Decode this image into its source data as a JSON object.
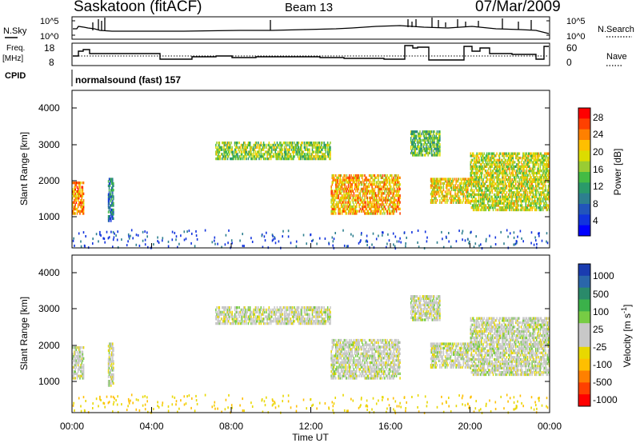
{
  "header": {
    "station": "Saskatoon (fitACF)",
    "beam": "Beam 13",
    "date": "07/Mar/2009"
  },
  "top_panel": {
    "nsky_label": "N.Sky",
    "nsky_ticks": [
      "10^5",
      "10^0"
    ],
    "nsearch_label": "N.Search",
    "nsearch_ticks": [
      "10^5",
      "10^0"
    ]
  },
  "freq_panel": {
    "freq_label_line1": "Freq.",
    "freq_label_line2": "[MHz]",
    "freq_ticks": [
      "18",
      "8"
    ],
    "nave_label": "Nave",
    "nave_ticks": [
      "60",
      "0"
    ]
  },
  "cpid_panel": {
    "label": "CPID",
    "program": "normalsound (fast) 157"
  },
  "power_panel": {
    "ylabel": "Slant Range [km]",
    "yticks": [
      "4000",
      "3000",
      "2000",
      "1000"
    ],
    "colorbar_label": "Power [dB]",
    "colorbar_ticks": [
      "28",
      "24",
      "20",
      "16",
      "12",
      "8",
      "4"
    ],
    "colorbar_colors": [
      "#ff0000",
      "#ff4000",
      "#ff8000",
      "#ffbf00",
      "#dcdc00",
      "#99cc33",
      "#44bb44",
      "#2a9a6a",
      "#2d7f8f",
      "#2255bb",
      "#1133dd",
      "#0000ff"
    ]
  },
  "velocity_panel": {
    "ylabel": "Slant Range [km]",
    "yticks": [
      "4000",
      "3000",
      "2000",
      "1000"
    ],
    "colorbar_label": "Velocity [m s",
    "colorbar_label_sup": "-1",
    "colorbar_label_end": "]",
    "colorbar_ticks": [
      "1000",
      "500",
      "100",
      "25",
      "-25",
      "-100",
      "-500",
      "-1000"
    ],
    "colorbar_colors": [
      "#1a3cb0",
      "#2a66aa",
      "#2a8a6a",
      "#3bb14a",
      "#77cc44",
      "#c8c8c8",
      "#c8c8c8",
      "#e8d800",
      "#ffbf00",
      "#ff8000",
      "#ff4000",
      "#ff0000"
    ]
  },
  "x_axis": {
    "ticks": [
      "00:00",
      "04:00",
      "08:00",
      "12:00",
      "16:00",
      "20:00",
      "00:00"
    ],
    "label": "Time UT"
  },
  "chart_data": {
    "type": "heatmap",
    "title": "Saskatoon (fitACF) Beam 13 07/Mar/2009",
    "xlabel": "Time UT",
    "ylabel": "Slant Range [km]",
    "xlim": [
      "00:00",
      "24:00"
    ],
    "ylim": [
      180,
      4500
    ],
    "series": [
      {
        "name": "Power [dB]",
        "range": [
          0,
          30
        ]
      },
      {
        "name": "Velocity [m s-1]",
        "range": [
          -1000,
          1000
        ]
      }
    ],
    "freq_mhz": [
      {
        "t": 0.0,
        "v": 11.5
      },
      {
        "t": 0.5,
        "v": 14.5
      },
      {
        "t": 1.2,
        "v": 12.8
      },
      {
        "t": 7.0,
        "v": 12.0
      },
      {
        "t": 10.0,
        "v": 12.0
      },
      {
        "t": 13.5,
        "v": 11.5
      },
      {
        "t": 16.7,
        "v": 17.5
      },
      {
        "t": 17.6,
        "v": 11.5
      },
      {
        "t": 19.8,
        "v": 16.5
      },
      {
        "t": 20.5,
        "v": 15.0
      },
      {
        "t": 21.5,
        "v": 12.5
      },
      {
        "t": 23.3,
        "v": 17.5
      }
    ],
    "echo_bands": [
      {
        "t0": 7.2,
        "t1": 13.0,
        "r0": 2600,
        "r1": 3100,
        "power": 16
      },
      {
        "t0": 13.0,
        "t1": 16.5,
        "r0": 1100,
        "r1": 2200,
        "power": 22
      },
      {
        "t0": 17.0,
        "t1": 18.5,
        "r0": 2700,
        "r1": 3400,
        "power": 14
      },
      {
        "t0": 18.0,
        "t1": 20.0,
        "r0": 1400,
        "r1": 2100,
        "power": 20
      },
      {
        "t0": 20.0,
        "t1": 24.0,
        "r0": 1200,
        "r1": 2800,
        "power": 18
      },
      {
        "t0": 0.0,
        "t1": 0.6,
        "r0": 1100,
        "r1": 2000,
        "power": 24
      },
      {
        "t0": 1.8,
        "t1": 2.1,
        "r0": 900,
        "r1": 2100,
        "power": 8
      }
    ]
  }
}
